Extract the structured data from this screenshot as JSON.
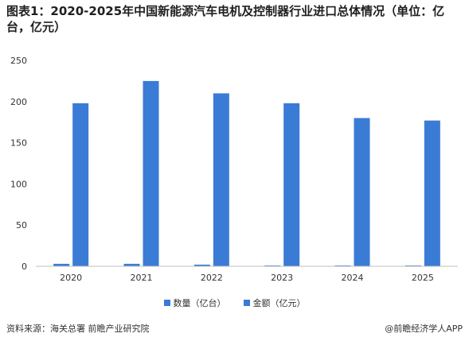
{
  "colors": {
    "series": [
      "#3a7bd5",
      "#3a7bd5"
    ],
    "axis": "#bfbfbf",
    "text": "#333333"
  },
  "header": {
    "title": "图表1：2020-2025年中国新能源汽车电机及控制器行业进口总体情况（单位：亿台，亿元）"
  },
  "footer": {
    "source": "资料来源：海关总署  前瞻产业研究院",
    "brand": "@前瞻经济学人APP"
  },
  "chart_data": {
    "type": "bar",
    "title": "图表1：2020-2025年中国新能源汽车电机及控制器行业进口总体情况（单位：亿台，亿元）",
    "categories": [
      "2020",
      "2021",
      "2022",
      "2023",
      "2024",
      "2025"
    ],
    "series": [
      {
        "name": "数量（亿台）",
        "values": [
          3,
          3,
          2,
          1,
          1,
          1
        ]
      },
      {
        "name": "金额（亿元）",
        "values": [
          198,
          225,
          210,
          198,
          180,
          177
        ]
      }
    ],
    "ylim": [
      0,
      250
    ],
    "yticks": [
      "0",
      "50",
      "100",
      "150",
      "200",
      "250"
    ],
    "xlabel": "",
    "ylabel": "",
    "grid": false,
    "legend": "bottom"
  }
}
